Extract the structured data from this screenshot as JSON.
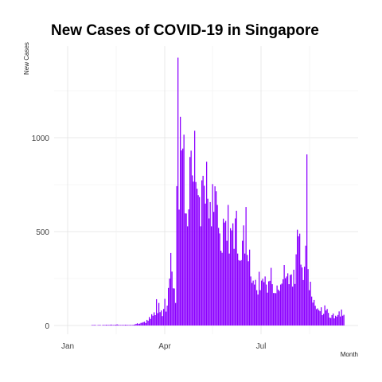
{
  "chart_data": {
    "type": "bar",
    "title": "New Cases of COVID-19 in Singapore",
    "xlabel": "Month",
    "ylabel": "New Cases",
    "x_ticks": [
      "Jan",
      "Apr",
      "Jul"
    ],
    "y_ticks": [
      0,
      500,
      1000
    ],
    "ylim": [
      0,
      1426
    ],
    "grid": true,
    "color": "#8B00FF",
    "series": [
      {
        "values": [
          1,
          1,
          2,
          1,
          0,
          1,
          2,
          1,
          0,
          3,
          1,
          2,
          4,
          2,
          1,
          3,
          5,
          2,
          1,
          3,
          4,
          6,
          3,
          2,
          1,
          2,
          3,
          2,
          4,
          3,
          1,
          2,
          3,
          2,
          2,
          4,
          6,
          9,
          12,
          8,
          10,
          14,
          15,
          18,
          20,
          13,
          30,
          25,
          45,
          35,
          60,
          52,
          70,
          55,
          140,
          66,
          120,
          71,
          80,
          50,
          88,
          142,
          74,
          106,
          200,
          250,
          386,
          287,
          198,
          197,
          120,
          742,
          1426,
          617,
          1111,
          932,
          942,
          1016,
          597,
          596,
          528,
          618,
          897,
          931,
          799,
          766,
          1037,
          764,
          728,
          694,
          684,
          528,
          773,
          797,
          744,
          649,
          872,
          675,
          570,
          657,
          528,
          753,
          605,
          741,
          715,
          642,
          520,
          490,
          398,
          387,
          569,
          548,
          557,
          451,
          642,
          383,
          518,
          506,
          544,
          408,
          570,
          611,
          383,
          348,
          344,
          348,
          451,
          533,
          383,
          631,
          376,
          342,
          404,
          261,
          227,
          239,
          218,
          243,
          188,
          165,
          286,
          188,
          239,
          249,
          231,
          261,
          218,
          175,
          235,
          238,
          307,
          220,
          173,
          173,
          172,
          213,
          191,
          184,
          218,
          223,
          246,
          322,
          252,
          261,
          278,
          220,
          269,
          272,
          207,
          297,
          221,
          379,
          510,
          475,
          489,
          324,
          309,
          242,
          313,
          425,
          911,
          300,
          188,
          233,
          154,
          122,
          136,
          105,
          87,
          91,
          82,
          76,
          97,
          55,
          62,
          107,
          80,
          88,
          67,
          42,
          40,
          55,
          64,
          38,
          52,
          47,
          56,
          75,
          48,
          85,
          52,
          57
        ]
      }
    ]
  }
}
